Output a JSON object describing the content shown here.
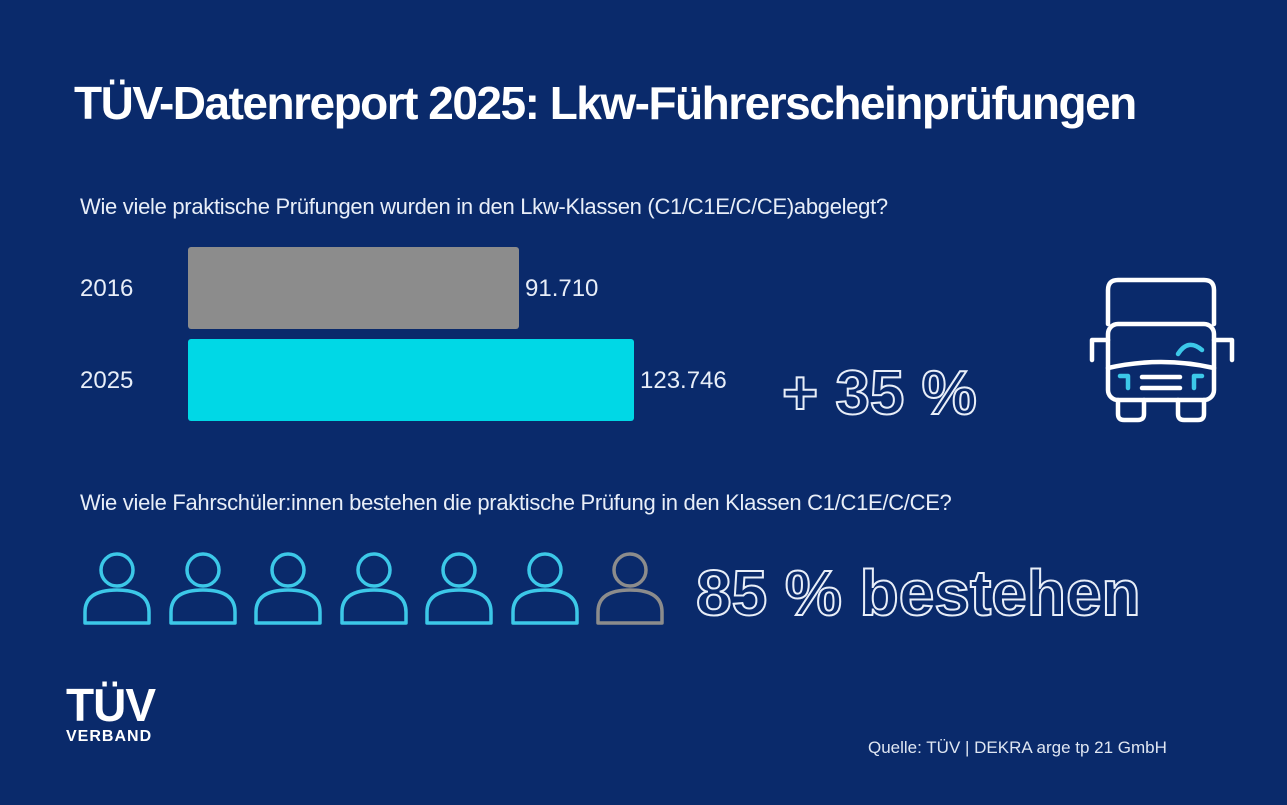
{
  "title": "TÜV-Datenreport 2025: Lkw-Führerscheinprüfungen",
  "question_1": "Wie viele praktische Prüfungen wurden in den Lkw-Klassen (C1/C1E/C/CE)abgelegt?",
  "question_2": "Wie viele Fahrschüler:innen bestehen die praktische Prüfung in den Klassen C1/C1E/C/CE?",
  "growth_label": "+ 35 %",
  "pass_label": "85 % bestehen",
  "source": "Quelle: TÜV | DEKRA arge tp 21 GmbH",
  "logo": {
    "mark": "TÜV",
    "sub": "VERBAND"
  },
  "icons": {
    "truck": "truck-front-icon",
    "person": "person-outline-icon"
  },
  "colors": {
    "background": "#0a2a6b",
    "bar_2016": "#8c8c8c",
    "bar_2025": "#00d8e6",
    "person_pass": "#3cc8e8",
    "person_fail": "#8c8c8c",
    "text": "#e8eef8"
  },
  "chart_data": [
    {
      "type": "bar",
      "orientation": "horizontal",
      "title": "Wie viele praktische Prüfungen wurden in den Lkw-Klassen (C1/C1E/C/CE)abgelegt?",
      "categories": [
        "2016",
        "2025"
      ],
      "values": [
        91710,
        123746
      ],
      "value_labels": [
        "91.710",
        "123.746"
      ],
      "xlim": [
        0,
        123746
      ],
      "annotation": "+ 35 %"
    },
    {
      "type": "pictogram",
      "title": "Wie viele Fahrschüler:innen bestehen die praktische Prüfung in den Klassen C1/C1E/C/CE?",
      "total_icons": 7,
      "highlighted_icons": 6,
      "value_percent": 85,
      "annotation": "85 % bestehen"
    }
  ]
}
